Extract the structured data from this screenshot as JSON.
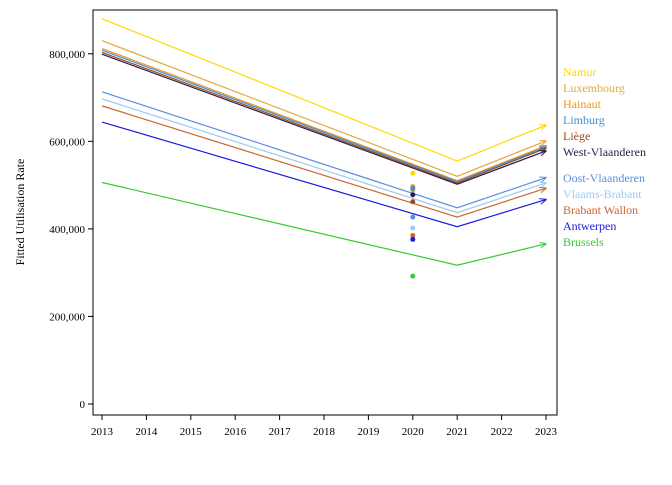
{
  "chart_data": {
    "type": "line",
    "title": "",
    "xlabel": "",
    "ylabel": "Fitted Utilisation Rate",
    "xlim": [
      2013,
      2023
    ],
    "ylim": [
      0,
      900000
    ],
    "x_ticks": [
      2013,
      2014,
      2015,
      2016,
      2017,
      2018,
      2019,
      2020,
      2021,
      2022,
      2023
    ],
    "y_ticks": [
      0,
      200000,
      400000,
      600000,
      800000
    ],
    "y_tick_labels": [
      "0",
      "200,000",
      "400,000",
      "600,000",
      "800,000"
    ],
    "grid": false,
    "legend": "right",
    "x_break": 2021,
    "arrow_at_end": true,
    "series": [
      {
        "name": "Namur",
        "color": "#ffd700",
        "start_2013": 880000,
        "at_2021": 555000,
        "end_2023": 637000,
        "observed_2020": 527000
      },
      {
        "name": "Luxembourg",
        "color": "#e5a93d",
        "start_2013": 830000,
        "at_2021": 520000,
        "end_2023": 601000,
        "observed_2020": 497000
      },
      {
        "name": "Hainaut",
        "color": "#e69a22",
        "start_2013": 812000,
        "at_2021": 510000,
        "end_2023": 590000,
        "observed_2020": 489000
      },
      {
        "name": "Limburg",
        "color": "#3a8fd8",
        "start_2013": 808000,
        "at_2021": 508000,
        "end_2023": 587000,
        "observed_2020": 493000
      },
      {
        "name": "Liège",
        "color": "#9b4a1a",
        "start_2013": 803000,
        "at_2021": 505000,
        "end_2023": 584000,
        "observed_2020": 462000
      },
      {
        "name": "West-Vlaanderen",
        "color": "#2d1a4a",
        "start_2013": 799000,
        "at_2021": 502000,
        "end_2023": 578000,
        "observed_2020": 478000
      },
      {
        "name": "Oost-Vlaanderen",
        "color": "#5b8ee0",
        "start_2013": 713000,
        "at_2021": 448000,
        "end_2023": 517000,
        "observed_2020": 427000
      },
      {
        "name": "Vlaams-Brabant",
        "color": "#9ccaf0",
        "start_2013": 697000,
        "at_2021": 437000,
        "end_2023": 505000,
        "observed_2020": 402000
      },
      {
        "name": "Brabant Wallon",
        "color": "#c8682e",
        "start_2013": 681000,
        "at_2021": 427000,
        "end_2023": 493000,
        "observed_2020": 385000
      },
      {
        "name": "Antwerpen",
        "color": "#1a1ae0",
        "start_2013": 644000,
        "at_2021": 405000,
        "end_2023": 467000,
        "observed_2020": 376000
      },
      {
        "name": "Brussels",
        "color": "#33cc33",
        "start_2013": 506000,
        "at_2021": 317000,
        "end_2023": 366000,
        "observed_2020": 292000
      }
    ]
  }
}
